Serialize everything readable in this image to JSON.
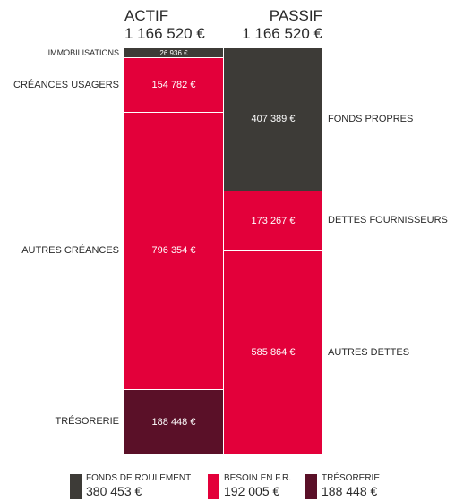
{
  "chart_data": {
    "type": "bar",
    "stacked": true,
    "columns": [
      {
        "title": "ACTIF",
        "total": "1 166 520 €",
        "total_value": 1166520,
        "segments": [
          {
            "label": "IMMOBILISATIONS",
            "value": 26936,
            "display": "26 936 €",
            "color": "#3d3b37",
            "side": "left"
          },
          {
            "label": "CRÉANCES USAGERS",
            "value": 154782,
            "display": "154 782 €",
            "color": "#e3003a",
            "side": "left"
          },
          {
            "label": "AUTRES CRÉANCES",
            "value": 796354,
            "display": "796 354 €",
            "color": "#e3003a",
            "side": "left"
          },
          {
            "label": "TRÉSORERIE",
            "value": 188448,
            "display": "188 448 €",
            "color": "#5a1028",
            "side": "left"
          }
        ]
      },
      {
        "title": "PASSIF",
        "total": "1 166 520 €",
        "total_value": 1166520,
        "segments": [
          {
            "label": "FONDS PROPRES",
            "value": 407389,
            "display": "407 389 €",
            "color": "#3d3b37",
            "side": "right"
          },
          {
            "label": "DETTES FOURNISSEURS",
            "value": 173267,
            "display": "173 267 €",
            "color": "#e3003a",
            "side": "right"
          },
          {
            "label": "AUTRES DETTES",
            "value": 585864,
            "display": "585 864 €",
            "color": "#e3003a",
            "side": "right"
          }
        ]
      }
    ],
    "legend": [
      {
        "label": "FONDS DE ROULEMENT",
        "value": "380 453 €",
        "color": "#3d3b37"
      },
      {
        "label": "BESOIN EN F.R.",
        "value": "192 005 €",
        "color": "#e3003a"
      },
      {
        "label": "TRÉSORERIE",
        "value": "188 448 €",
        "color": "#5a1028"
      }
    ],
    "legend_position": "bottom"
  }
}
